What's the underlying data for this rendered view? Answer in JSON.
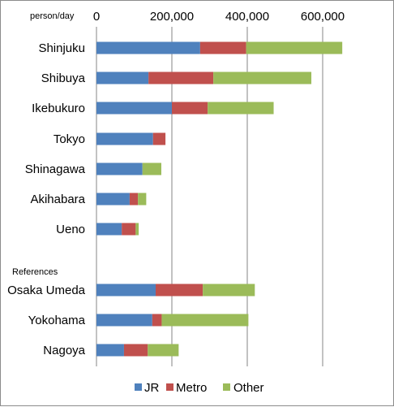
{
  "chart_data": {
    "type": "bar",
    "orientation": "horizontal",
    "stacked": true,
    "unit_label": "person/day",
    "section_label": "References",
    "xlim": [
      0,
      650000
    ],
    "x_ticks": [
      {
        "value": 0,
        "label": "0"
      },
      {
        "value": 200000,
        "label": "200,000"
      },
      {
        "value": 400000,
        "label": "400,000"
      },
      {
        "value": 600000,
        "label": "600,000"
      }
    ],
    "categories": [
      "Shinjuku",
      "Shibuya",
      "Ikebukuro",
      "Tokyo",
      "Shinagawa",
      "Akihabara",
      "Ueno",
      "Osaka Umeda",
      "Yokohama",
      "Nagoya"
    ],
    "series": [
      {
        "name": "JR",
        "color": "#4f81bd",
        "values": [
          275000,
          138000,
          200000,
          150000,
          122000,
          88000,
          67000,
          157000,
          148000,
          73000
        ]
      },
      {
        "name": "Metro",
        "color": "#c0504d",
        "values": [
          122000,
          172000,
          95000,
          33000,
          0,
          22000,
          37000,
          125000,
          25000,
          63000
        ]
      },
      {
        "name": "Other",
        "color": "#9bbb59",
        "values": [
          255000,
          260000,
          175000,
          0,
          50000,
          22000,
          8000,
          138000,
          230000,
          82000
        ]
      }
    ],
    "grid": true,
    "legend_position": "bottom"
  }
}
